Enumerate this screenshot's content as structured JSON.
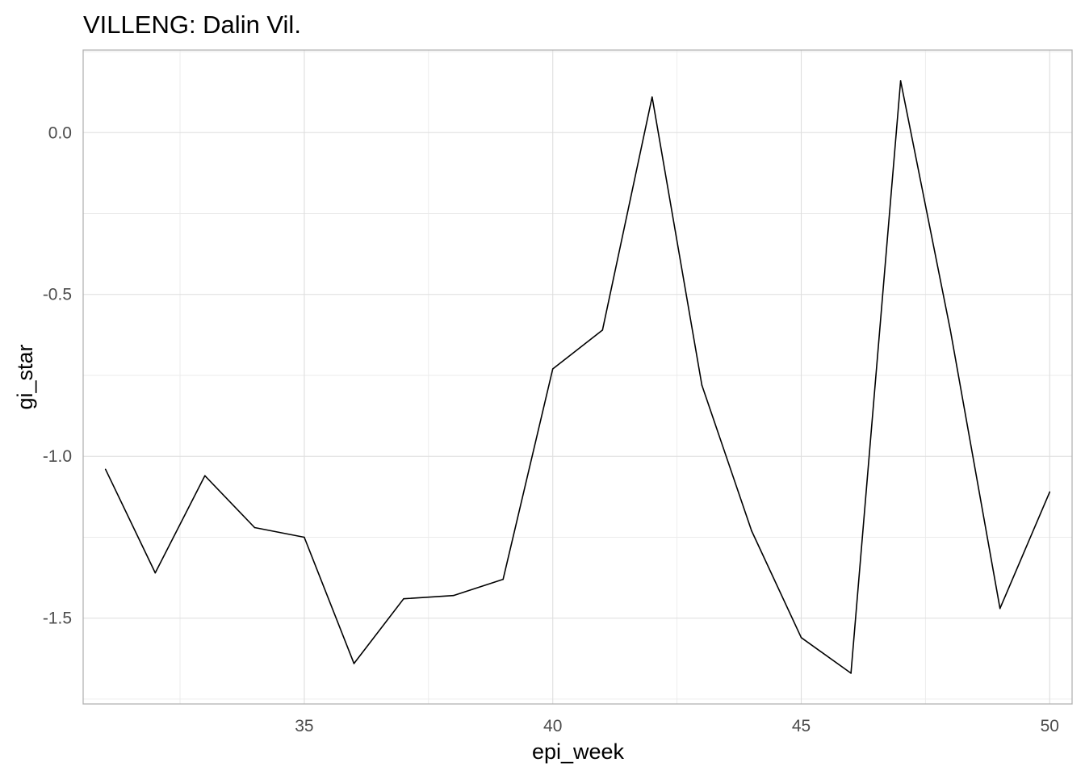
{
  "chart_data": {
    "type": "line",
    "title": "VILLENG: Dalin Vil.",
    "xlabel": "epi_week",
    "ylabel": "gi_star",
    "xlim": [
      30.55,
      50.45
    ],
    "ylim": [
      -1.765,
      0.255
    ],
    "x_ticks": [
      35,
      40,
      45,
      50
    ],
    "x_tick_labels": [
      "35",
      "40",
      "45",
      "50"
    ],
    "x_minor_ticks": [
      32.5,
      37.5,
      42.5,
      47.5
    ],
    "y_ticks": [
      0.0,
      -0.5,
      -1.0,
      -1.5
    ],
    "y_tick_labels": [
      "0.0",
      "-0.5",
      "-1.0",
      "-1.5"
    ],
    "y_minor_ticks": [
      0.25,
      -0.25,
      -0.75,
      -1.25,
      -1.75
    ],
    "grid": true,
    "legend": "none",
    "series": [
      {
        "color": "#000000",
        "x": [
          31,
          32,
          33,
          34,
          35,
          36,
          37,
          38,
          39,
          40,
          41,
          42,
          43,
          44,
          45,
          46,
          47,
          48,
          49,
          50
        ],
        "y": [
          -1.04,
          -1.36,
          -1.06,
          -1.22,
          -1.25,
          -1.64,
          -1.44,
          -1.43,
          -1.38,
          -0.73,
          -0.61,
          0.11,
          -0.78,
          -1.23,
          -1.56,
          -1.67,
          0.16,
          -0.61,
          -1.47,
          -1.11
        ]
      }
    ]
  }
}
